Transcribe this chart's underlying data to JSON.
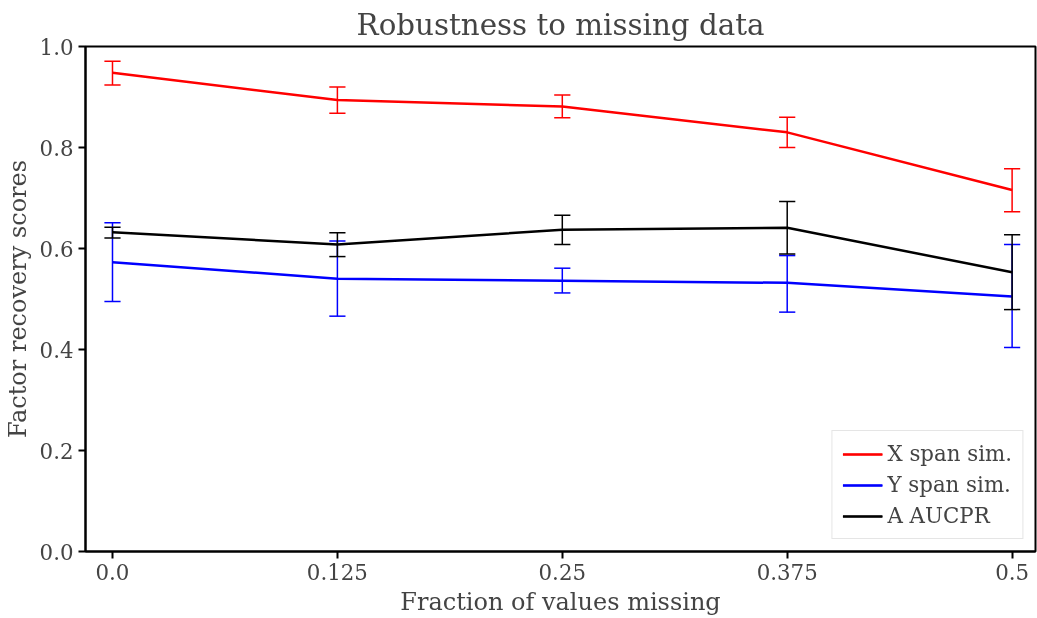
{
  "chart_data": {
    "type": "line",
    "title": "Robustness to missing data",
    "xlabel": "Fraction of values missing",
    "ylabel": "Factor recovery scores",
    "x": [
      0.0,
      0.125,
      0.25,
      0.375,
      0.5
    ],
    "xlim": [
      -0.015,
      0.513
    ],
    "xticks": [
      {
        "value": 0,
        "label": "0.0"
      },
      0.125,
      0.25,
      0.375,
      0.5
    ],
    "ylim": [
      0,
      1
    ],
    "yticks": [
      {
        "value": 0,
        "label": "0.0"
      },
      0.2,
      0.4,
      0.6,
      0.8,
      {
        "value": 1,
        "label": "1.0"
      }
    ],
    "grid": false,
    "legend": "bottom right",
    "marker": "none",
    "line_style": "solid",
    "series": [
      {
        "name": "X span sim.",
        "color": "#ff0000",
        "values": [
          0.948,
          0.894,
          0.881,
          0.83,
          0.716
        ],
        "errors": [
          [
            0.924,
            0.971
          ],
          [
            0.868,
            0.92
          ],
          [
            0.859,
            0.904
          ],
          [
            0.8,
            0.86
          ],
          [
            0.673,
            0.758
          ]
        ]
      },
      {
        "name": "Y span sim.",
        "color": "#0000ff",
        "values": [
          0.573,
          0.54,
          0.536,
          0.532,
          0.505
        ],
        "errors": [
          [
            0.495,
            0.651
          ],
          [
            0.466,
            0.615
          ],
          [
            0.512,
            0.561
          ],
          [
            0.474,
            0.586
          ],
          [
            0.404,
            0.608
          ]
        ]
      },
      {
        "name": "A AUCPR",
        "color": "#000000",
        "values": [
          0.632,
          0.608,
          0.637,
          0.641,
          0.553
        ],
        "errors": [
          [
            0.621,
            0.642
          ],
          [
            0.584,
            0.631
          ],
          [
            0.608,
            0.666
          ],
          [
            0.589,
            0.693
          ],
          [
            0.479,
            0.627
          ]
        ]
      }
    ]
  }
}
